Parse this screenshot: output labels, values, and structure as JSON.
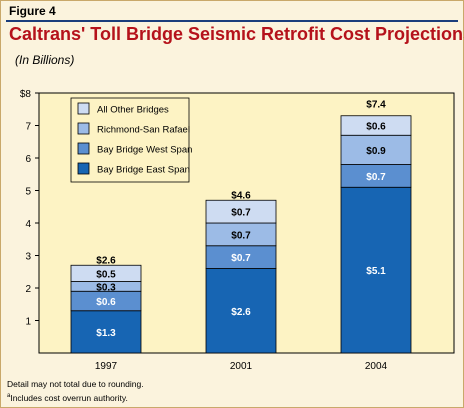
{
  "figure_label": "Figure 4",
  "title": "Caltrans' Toll Bridge Seismic Retrofit Cost Projections",
  "title_footnote_mark": "a",
  "subtitle": "(In Billions)",
  "notes": {
    "line1": "Detail may not total due to rounding.",
    "line2_mark": "a",
    "line2": "Includes cost overrun authority."
  },
  "colors": {
    "background": "#fbf3dd",
    "title": "#b5121b",
    "bay_bridge_east_span": "#1765b3",
    "bay_bridge_west_span": "#5b8fd0",
    "richmond_san_rafael": "#9cbbe6",
    "all_other_bridges": "#cedcf2"
  },
  "chart_data": {
    "type": "bar",
    "stacked": true,
    "categories": [
      "1997",
      "2001",
      "2004"
    ],
    "series": [
      {
        "name": "Bay Bridge East Span",
        "values": [
          1.3,
          2.6,
          5.1
        ],
        "labels": [
          "$1.3",
          "$2.6",
          "$5.1"
        ],
        "color": "#1765b3"
      },
      {
        "name": "Bay Bridge West Span",
        "values": [
          0.6,
          0.7,
          0.7
        ],
        "labels": [
          "$0.6",
          "$0.7",
          "$0.7"
        ],
        "color": "#5b8fd0"
      },
      {
        "name": "Richmond-San Rafael",
        "values": [
          0.3,
          0.7,
          0.9
        ],
        "labels": [
          "$0.3",
          "$0.7",
          "$0.9"
        ],
        "color": "#9cbbe6"
      },
      {
        "name": "All Other Bridges",
        "values": [
          0.5,
          0.7,
          0.6
        ],
        "labels": [
          "$0.5",
          "$0.7",
          "$0.6"
        ],
        "color": "#cedcf2"
      }
    ],
    "totals": [
      2.6,
      4.6,
      7.4
    ],
    "total_labels": [
      "$2.6",
      "$4.6",
      "$7.4"
    ],
    "yticks": [
      {
        "value": 1,
        "label": "1"
      },
      {
        "value": 2,
        "label": "2"
      },
      {
        "value": 3,
        "label": "3"
      },
      {
        "value": 4,
        "label": "4"
      },
      {
        "value": 5,
        "label": "5"
      },
      {
        "value": 6,
        "label": "6"
      },
      {
        "value": 7,
        "label": "7"
      },
      {
        "value": 8,
        "label": "$8"
      }
    ],
    "legend_order": [
      "All Other Bridges",
      "Richmond-San Rafael",
      "Bay Bridge West Span",
      "Bay Bridge East Span"
    ],
    "legend_position": "top-left",
    "ylim": [
      0,
      8
    ],
    "grid": false
  }
}
